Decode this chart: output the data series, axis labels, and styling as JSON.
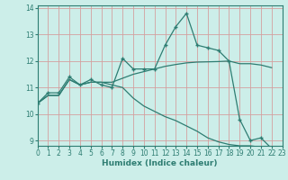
{
  "xlabel": "Humidex (Indice chaleur)",
  "xlim": [
    0,
    23
  ],
  "ylim": [
    9,
    14
  ],
  "yticks": [
    9,
    10,
    11,
    12,
    13,
    14
  ],
  "xticks": [
    0,
    1,
    2,
    3,
    4,
    5,
    6,
    7,
    8,
    9,
    10,
    11,
    12,
    13,
    14,
    15,
    16,
    17,
    18,
    19,
    20,
    21,
    22,
    23
  ],
  "bg_color": "#cceee9",
  "grid_color": "#d4a0a0",
  "line_color": "#2e7d72",
  "series1": [
    10.4,
    10.8,
    10.8,
    11.4,
    11.1,
    11.3,
    11.1,
    11.0,
    12.1,
    11.7,
    11.7,
    11.7,
    12.6,
    13.3,
    13.8,
    12.6,
    12.5,
    12.4,
    12.0,
    9.8,
    9.0,
    9.1,
    8.7
  ],
  "series2": [
    10.4,
    10.7,
    10.7,
    11.3,
    11.1,
    11.2,
    11.2,
    11.1,
    11.0,
    10.6,
    10.3,
    10.1,
    9.9,
    9.75,
    9.55,
    9.35,
    9.1,
    8.95,
    8.85,
    8.8,
    8.8,
    8.75,
    8.65
  ],
  "series3": [
    10.4,
    10.7,
    10.7,
    11.3,
    11.1,
    11.2,
    11.2,
    11.2,
    11.35,
    11.5,
    11.6,
    11.7,
    11.8,
    11.87,
    11.93,
    11.96,
    11.97,
    11.98,
    12.0,
    11.9,
    11.9,
    11.85,
    11.75
  ],
  "x_vals": [
    0,
    1,
    2,
    3,
    4,
    5,
    6,
    7,
    8,
    9,
    10,
    11,
    12,
    13,
    14,
    15,
    16,
    17,
    18,
    19,
    20,
    21,
    22
  ]
}
